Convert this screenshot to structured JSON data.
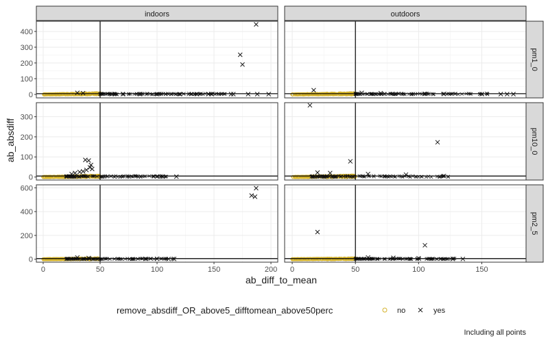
{
  "chart_data": {
    "type": "scatter",
    "xlabel": "ab_diff_to_mean",
    "ylabel": "ab_absdiff",
    "caption": "Including all points",
    "facet_columns": [
      "indoors",
      "outdoors"
    ],
    "facet_rows": [
      "pm1_0",
      "pm10_0",
      "pm2_5"
    ],
    "legend": {
      "title": "remove_absdiff_OR_above5_difftomean_above50perc",
      "position": "bottom",
      "entries": [
        {
          "label": "no",
          "shape": "circle",
          "color": "#d4b22a"
        },
        {
          "label": "yes",
          "shape": "x",
          "color": "#1a1a1a"
        }
      ]
    },
    "reference_lines": {
      "vline_x": 50,
      "hline_y": 5
    },
    "grid": true,
    "panels": [
      {
        "col": "indoors",
        "row": "pm1_0",
        "xlim": [
          -6,
          206
        ],
        "ylim": [
          -22,
          465
        ],
        "xticks": [
          0,
          50,
          100,
          150,
          200
        ],
        "yticks": [
          0,
          100,
          200,
          300,
          400
        ],
        "no_range": [
          0,
          50
        ],
        "yes_points": [
          [
            187,
            445
          ],
          [
            173,
            252
          ],
          [
            175,
            190
          ],
          [
            30,
            10
          ],
          [
            35,
            8
          ],
          [
            60,
            2
          ],
          [
            70,
            2
          ],
          [
            85,
            2
          ],
          [
            100,
            2
          ],
          [
            120,
            2
          ],
          [
            135,
            2
          ],
          [
            145,
            2
          ],
          [
            148,
            2
          ],
          [
            165,
            2
          ],
          [
            167,
            2
          ],
          [
            180,
            2
          ],
          [
            188,
            2
          ],
          [
            198,
            2
          ]
        ],
        "yes_band": [
          50,
          160
        ]
      },
      {
        "col": "outdoors",
        "row": "pm1_0",
        "xlim": [
          -6,
          185
        ],
        "ylim": [
          -22,
          465
        ],
        "xticks": [
          0,
          50,
          100,
          150
        ],
        "yticks": [
          0,
          100,
          200,
          300,
          400
        ],
        "no_range": [
          0,
          50
        ],
        "yes_points": [
          [
            17,
            27
          ],
          [
            55,
            10
          ],
          [
            70,
            8
          ],
          [
            105,
            4
          ],
          [
            120,
            3
          ],
          [
            150,
            2
          ],
          [
            165,
            2
          ],
          [
            170,
            2
          ],
          [
            175,
            2
          ]
        ],
        "yes_band": [
          50,
          155
        ]
      },
      {
        "col": "indoors",
        "row": "pm10_0",
        "xlim": [
          -6,
          206
        ],
        "ylim": [
          -15,
          370
        ],
        "xticks": [
          0,
          50,
          100,
          150,
          200
        ],
        "yticks": [
          0,
          100,
          200,
          300
        ],
        "no_range": [
          0,
          50
        ],
        "yes_points": [
          [
            37,
            85
          ],
          [
            40,
            82
          ],
          [
            42,
            60
          ],
          [
            41,
            48
          ],
          [
            43,
            40
          ],
          [
            38,
            35
          ],
          [
            35,
            28
          ],
          [
            32,
            25
          ],
          [
            28,
            20
          ],
          [
            25,
            15
          ],
          [
            100,
            3
          ],
          [
            105,
            2
          ],
          [
            117,
            2
          ]
        ],
        "yes_band": [
          20,
          110
        ]
      },
      {
        "col": "outdoors",
        "row": "pm10_0",
        "xlim": [
          -6,
          185
        ],
        "ylim": [
          -15,
          370
        ],
        "xticks": [
          0,
          50,
          100,
          150
        ],
        "yticks": [
          0,
          100,
          200,
          300
        ],
        "no_range": [
          0,
          50
        ],
        "yes_points": [
          [
            14,
            357
          ],
          [
            115,
            173
          ],
          [
            46,
            78
          ],
          [
            20,
            22
          ],
          [
            30,
            20
          ],
          [
            60,
            15
          ],
          [
            90,
            12
          ],
          [
            120,
            5
          ]
        ],
        "yes_band": [
          15,
          125
        ]
      },
      {
        "col": "indoors",
        "row": "pm2_5",
        "xlim": [
          -6,
          206
        ],
        "ylim": [
          -25,
          625
        ],
        "xticks": [
          0,
          50,
          100,
          150,
          200
        ],
        "yticks": [
          0,
          200,
          400,
          600
        ],
        "no_range": [
          0,
          50
        ],
        "yes_points": [
          [
            187,
            597
          ],
          [
            183,
            535
          ],
          [
            186,
            525
          ],
          [
            30,
            15
          ],
          [
            40,
            10
          ],
          [
            90,
            3
          ],
          [
            100,
            3
          ],
          [
            110,
            2
          ],
          [
            115,
            2
          ]
        ],
        "yes_band": [
          20,
          115
        ]
      },
      {
        "col": "outdoors",
        "row": "pm2_5",
        "xlim": [
          -6,
          185
        ],
        "ylim": [
          -25,
          625
        ],
        "xticks": [
          0,
          50,
          100,
          150
        ],
        "yticks": [
          0,
          200,
          400,
          600
        ],
        "no_range": [
          0,
          50
        ],
        "yes_points": [
          [
            20,
            228
          ],
          [
            105,
            117
          ],
          [
            60,
            15
          ],
          [
            80,
            12
          ],
          [
            100,
            8
          ],
          [
            127,
            2
          ],
          [
            135,
            2
          ]
        ],
        "yes_band": [
          50,
          130
        ]
      }
    ]
  }
}
